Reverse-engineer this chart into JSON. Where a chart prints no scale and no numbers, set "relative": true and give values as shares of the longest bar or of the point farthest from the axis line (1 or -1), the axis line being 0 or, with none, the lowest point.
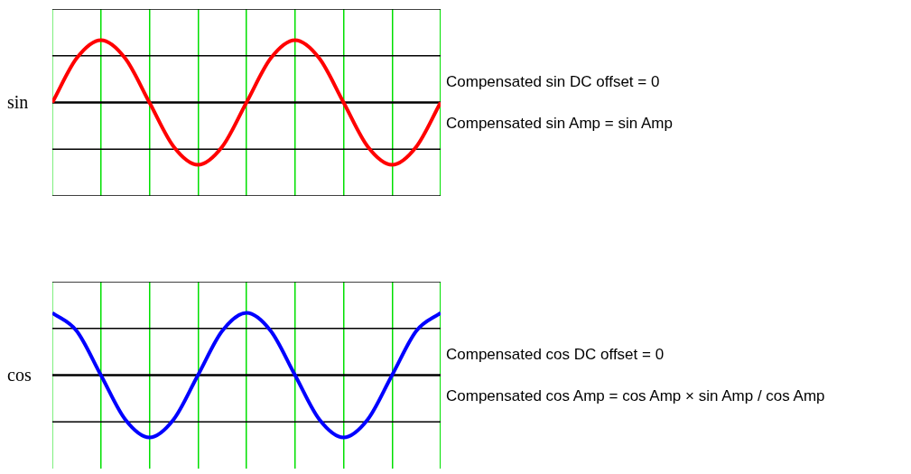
{
  "chart_data": [
    {
      "type": "line",
      "relative": true,
      "ylabel": "sin",
      "grid": "x",
      "ref_lines": [
        {
          "axis": "y",
          "value": 1.5,
          "color": "#000000"
        },
        {
          "axis": "y",
          "value": 0.75,
          "color": "#000000"
        },
        {
          "axis": "y",
          "value": 0,
          "color": "#000000"
        },
        {
          "axis": "y",
          "value": -0.75,
          "color": "#000000"
        },
        {
          "axis": "y",
          "value": -1.5,
          "color": "#000000"
        }
      ],
      "categories": [
        null,
        null,
        null,
        null,
        null,
        null,
        null,
        null,
        null,
        null,
        null,
        null,
        null,
        null,
        null,
        null,
        null
      ],
      "series": [
        {
          "color": "#ff0000",
          "values": [
            0,
            0.71,
            1,
            0.71,
            0,
            -0.71,
            -1,
            -0.71,
            0,
            0.71,
            1,
            0.71,
            0,
            -0.71,
            -1,
            -0.71,
            0
          ]
        }
      ],
      "annotations": [
        "Compensated sin DC offset = 0",
        "Compensated sin Amp = sin Amp"
      ]
    },
    {
      "type": "line",
      "relative": true,
      "ylabel": "cos",
      "grid": "x",
      "ref_lines": [
        {
          "axis": "y",
          "value": 1.5,
          "color": "#000000"
        },
        {
          "axis": "y",
          "value": 0.75,
          "color": "#000000"
        },
        {
          "axis": "y",
          "value": 0,
          "color": "#000000"
        },
        {
          "axis": "y",
          "value": -0.75,
          "color": "#000000"
        }
      ],
      "categories": [
        null,
        null,
        null,
        null,
        null,
        null,
        null,
        null,
        null,
        null,
        null,
        null,
        null,
        null,
        null,
        null,
        null
      ],
      "series": [
        {
          "color": "#0000ff",
          "values": [
            1,
            0.71,
            0,
            -0.71,
            -1,
            -0.71,
            0,
            0.71,
            1,
            0.71,
            0,
            -0.71,
            -1,
            -0.71,
            0,
            0.71,
            1
          ]
        }
      ],
      "annotations": [
        "Compensated cos DC offset = 0",
        "Compensated cos Amp = cos Amp × sin Amp / cos Amp"
      ]
    }
  ]
}
